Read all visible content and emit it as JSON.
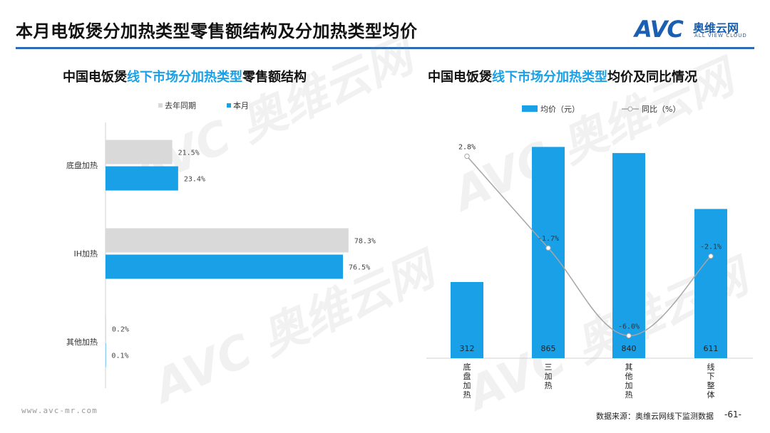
{
  "header": {
    "title": "本月电饭煲分加热类型零售额结构及分加热类型均价",
    "logo_avc": "AVC",
    "logo_cn": "奥维云网",
    "logo_en": "ALL VIEW CLOUD"
  },
  "left_chart": {
    "title_prefix": "中国电饭煲",
    "title_highlight": "线下市场分加热类型",
    "title_suffix": "零售额结构"
  },
  "right_chart": {
    "title_prefix": "中国电饭煲",
    "title_highlight": "线下市场分加热类型",
    "title_suffix": "均价及同比情况"
  },
  "watermark": "AVC 奥维云网",
  "footer": {
    "url": "www.avc-mr.com",
    "source": "数据来源：奥维云网线下监测数据",
    "page": "-61-"
  },
  "chart_data": [
    {
      "type": "bar",
      "orientation": "horizontal",
      "categories": [
        "底盘加热",
        "IH加热",
        "其他加热"
      ],
      "series": [
        {
          "name": "去年同期",
          "values": [
            21.5,
            78.3,
            0.2
          ],
          "labels": [
            "21.5%",
            "78.3%",
            "0.2%"
          ],
          "color": "#d9d9d9"
        },
        {
          "name": "本月",
          "values": [
            23.4,
            76.5,
            0.1
          ],
          "labels": [
            "23.4%",
            "76.5%",
            "0.1%"
          ],
          "color": "#1aa0e6"
        }
      ],
      "xlim": [
        0,
        85
      ],
      "legend": "top-left"
    },
    {
      "type": "bar",
      "categories": [
        "底盘加热",
        "三加热",
        "其他加热",
        "线下整体"
      ],
      "series": [
        {
          "name": "均价（元）",
          "type": "bar",
          "values": [
            312,
            865,
            840,
            611
          ],
          "labels": [
            "312",
            "865",
            "840",
            "611"
          ],
          "color": "#1aa0e6"
        },
        {
          "name": "同比（%）",
          "type": "line",
          "values": [
            2.8,
            -1.7,
            -6.0,
            -2.1
          ],
          "labels": [
            "2.8%",
            "-1.7%",
            "-6.0%",
            "-2.1%"
          ],
          "color": "#a6a6a6"
        }
      ],
      "ylim_bar": [
        0,
        1000
      ],
      "ylim_line": [
        -7,
        4
      ],
      "legend": "top"
    }
  ]
}
